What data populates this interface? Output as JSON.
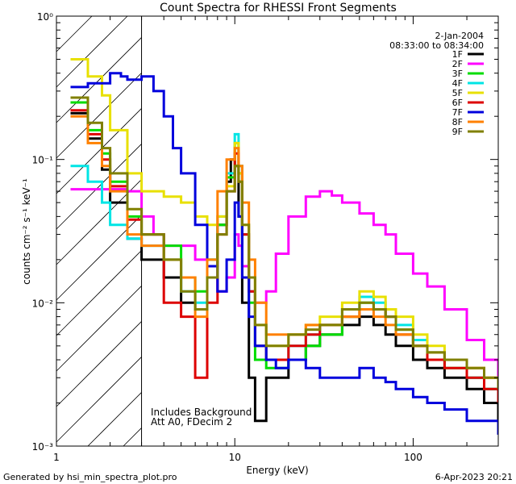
{
  "chart_data": {
    "type": "line",
    "title": "Count Spectra for RHESSI Front Segments",
    "xlabel": "Energy (keV)",
    "ylabel": "counts cm⁻² s⁻¹ keV⁻¹",
    "xscale": "log",
    "yscale": "log",
    "xlim": [
      1,
      300
    ],
    "ylim": [
      0.001,
      1
    ],
    "x_ticks": [
      {
        "value": 1,
        "label": "1"
      },
      {
        "value": 10,
        "label": "10"
      },
      {
        "value": 100,
        "label": "100"
      }
    ],
    "y_ticks": [
      {
        "value": 0.001,
        "label": "10⁻³"
      },
      {
        "value": 0.01,
        "label": "10⁻²"
      },
      {
        "value": 0.1,
        "label": "10⁻¹"
      },
      {
        "value": 1,
        "label": "10⁰"
      }
    ],
    "shaded_region": {
      "x_from": 1,
      "x_to": 3,
      "style": "diagonal hatch"
    },
    "date": "2-Jan-2004",
    "time_range": "08:33:00 to 08:34:00",
    "annotations": [
      "Includes Background",
      "Att A0, FDecim 2"
    ],
    "legend_position": "top-right",
    "series": [
      {
        "name": "1F",
        "color": "#000000",
        "x": [
          1.2,
          1.5,
          1.8,
          2,
          2.5,
          3,
          4,
          5,
          6,
          7,
          8,
          9,
          9.5,
          10,
          10.5,
          11,
          12,
          13,
          15,
          20,
          25,
          30,
          40,
          50,
          60,
          70,
          80,
          100,
          120,
          150,
          200,
          250,
          300
        ],
        "values": [
          0.21,
          0.14,
          0.085,
          0.05,
          0.028,
          0.02,
          0.015,
          0.01,
          0.009,
          0.018,
          0.035,
          0.07,
          0.1,
          0.09,
          0.04,
          0.01,
          0.003,
          0.0015,
          0.003,
          0.004,
          0.005,
          0.006,
          0.007,
          0.008,
          0.007,
          0.006,
          0.005,
          0.004,
          0.0035,
          0.003,
          0.0025,
          0.002,
          0.0015
        ]
      },
      {
        "name": "2F",
        "color": "#ff00ff",
        "x": [
          1.2,
          1.5,
          2,
          2.5,
          3,
          3.5,
          4,
          5,
          6,
          7,
          8,
          9,
          10,
          10.5,
          11,
          12,
          13,
          15,
          17,
          20,
          25,
          30,
          35,
          40,
          50,
          60,
          70,
          80,
          100,
          120,
          150,
          200,
          250,
          300
        ],
        "values": [
          0.062,
          0.062,
          0.062,
          0.06,
          0.04,
          0.03,
          0.025,
          0.025,
          0.02,
          0.015,
          0.012,
          0.015,
          0.03,
          0.025,
          0.018,
          0.012,
          0.01,
          0.012,
          0.022,
          0.04,
          0.055,
          0.06,
          0.056,
          0.05,
          0.042,
          0.035,
          0.03,
          0.022,
          0.016,
          0.013,
          0.009,
          0.0055,
          0.004,
          0.0028
        ]
      },
      {
        "name": "3F",
        "color": "#00dd00",
        "x": [
          1.2,
          1.5,
          1.8,
          2,
          2.5,
          3,
          4,
          5,
          6,
          7,
          8,
          9,
          10,
          10.5,
          11,
          12,
          13,
          15,
          20,
          25,
          30,
          40,
          50,
          60,
          70,
          80,
          100,
          120,
          150,
          200,
          250,
          300
        ],
        "values": [
          0.25,
          0.16,
          0.11,
          0.07,
          0.04,
          0.03,
          0.025,
          0.015,
          0.012,
          0.02,
          0.035,
          0.075,
          0.13,
          0.08,
          0.03,
          0.01,
          0.004,
          0.0035,
          0.004,
          0.005,
          0.006,
          0.008,
          0.01,
          0.009,
          0.008,
          0.0065,
          0.005,
          0.004,
          0.0035,
          0.003,
          0.0025,
          0.002
        ]
      },
      {
        "name": "4F",
        "color": "#00e5e5",
        "x": [
          1.2,
          1.5,
          1.8,
          2,
          2.5,
          3,
          4,
          5,
          6,
          7,
          8,
          9,
          10,
          10.5,
          11,
          12,
          13,
          15,
          20,
          25,
          30,
          40,
          50,
          60,
          70,
          80,
          100,
          120,
          150,
          200,
          250,
          300
        ],
        "values": [
          0.09,
          0.07,
          0.05,
          0.035,
          0.028,
          0.025,
          0.02,
          0.012,
          0.01,
          0.02,
          0.04,
          0.08,
          0.15,
          0.09,
          0.03,
          0.012,
          0.005,
          0.004,
          0.005,
          0.006,
          0.007,
          0.009,
          0.011,
          0.01,
          0.009,
          0.007,
          0.0055,
          0.0045,
          0.004,
          0.003,
          0.0025,
          0.002
        ]
      },
      {
        "name": "5F",
        "color": "#e8e000",
        "x": [
          1.2,
          1.5,
          1.8,
          2,
          2.5,
          3,
          4,
          5,
          6,
          7,
          8,
          9,
          10,
          10.5,
          11,
          12,
          13,
          15,
          20,
          25,
          30,
          40,
          50,
          60,
          70,
          80,
          100,
          120,
          150,
          200,
          250,
          300
        ],
        "values": [
          0.5,
          0.38,
          0.28,
          0.16,
          0.08,
          0.06,
          0.055,
          0.05,
          0.04,
          0.035,
          0.04,
          0.065,
          0.13,
          0.08,
          0.035,
          0.015,
          0.007,
          0.005,
          0.006,
          0.007,
          0.008,
          0.01,
          0.012,
          0.011,
          0.009,
          0.008,
          0.006,
          0.005,
          0.004,
          0.0035,
          0.003,
          0.0025
        ]
      },
      {
        "name": "6F",
        "color": "#dd0000",
        "x": [
          1.2,
          1.5,
          1.8,
          2,
          2.5,
          3,
          4,
          5,
          6,
          7,
          8,
          9,
          10,
          10.5,
          11,
          12,
          13,
          15,
          20,
          25,
          30,
          40,
          50,
          60,
          70,
          80,
          100,
          120,
          150,
          200,
          250,
          300
        ],
        "values": [
          0.22,
          0.15,
          0.1,
          0.065,
          0.038,
          0.03,
          0.01,
          0.008,
          0.003,
          0.01,
          0.03,
          0.06,
          0.11,
          0.07,
          0.03,
          0.012,
          0.005,
          0.004,
          0.005,
          0.006,
          0.007,
          0.008,
          0.009,
          0.009,
          0.008,
          0.006,
          0.005,
          0.004,
          0.0035,
          0.003,
          0.0025,
          0.002
        ]
      },
      {
        "name": "7F",
        "color": "#0000dd",
        "x": [
          1.2,
          1.5,
          2,
          2.3,
          2.5,
          3,
          3.5,
          4,
          4.5,
          5,
          6,
          7,
          8,
          9,
          10,
          10.5,
          11,
          12,
          13,
          15,
          17,
          20,
          25,
          30,
          40,
          50,
          60,
          70,
          80,
          100,
          120,
          150,
          200,
          250,
          300
        ],
        "values": [
          0.32,
          0.34,
          0.4,
          0.38,
          0.36,
          0.38,
          0.3,
          0.2,
          0.12,
          0.08,
          0.035,
          0.018,
          0.012,
          0.02,
          0.05,
          0.04,
          0.015,
          0.008,
          0.005,
          0.004,
          0.0035,
          0.004,
          0.0035,
          0.003,
          0.003,
          0.0035,
          0.003,
          0.0028,
          0.0025,
          0.0022,
          0.002,
          0.0018,
          0.0015,
          0.0015,
          0.0012
        ]
      },
      {
        "name": "8F",
        "color": "#ff8000",
        "x": [
          1.2,
          1.5,
          1.8,
          2,
          2.5,
          3,
          4,
          5,
          6,
          7,
          8,
          9,
          10,
          10.5,
          11,
          12,
          13,
          15,
          20,
          25,
          30,
          40,
          50,
          60,
          70,
          80,
          100,
          120,
          150,
          200,
          250,
          300
        ],
        "values": [
          0.2,
          0.13,
          0.09,
          0.06,
          0.03,
          0.025,
          0.02,
          0.015,
          0.008,
          0.02,
          0.06,
          0.1,
          0.12,
          0.09,
          0.05,
          0.02,
          0.01,
          0.006,
          0.006,
          0.007,
          0.007,
          0.008,
          0.009,
          0.008,
          0.007,
          0.006,
          0.005,
          0.0045,
          0.004,
          0.0035,
          0.003,
          0.0025
        ]
      },
      {
        "name": "9F",
        "color": "#808000",
        "x": [
          1.2,
          1.5,
          1.8,
          2,
          2.5,
          3,
          4,
          5,
          6,
          7,
          8,
          9,
          10,
          10.5,
          11,
          12,
          13,
          15,
          20,
          25,
          30,
          40,
          50,
          60,
          70,
          80,
          100,
          120,
          150,
          200,
          250,
          300
        ],
        "values": [
          0.27,
          0.18,
          0.12,
          0.08,
          0.045,
          0.03,
          0.02,
          0.012,
          0.009,
          0.015,
          0.03,
          0.06,
          0.09,
          0.07,
          0.035,
          0.015,
          0.007,
          0.005,
          0.006,
          0.0065,
          0.007,
          0.009,
          0.01,
          0.009,
          0.008,
          0.0065,
          0.005,
          0.0045,
          0.004,
          0.0035,
          0.003,
          0.0025
        ]
      }
    ]
  },
  "footer": {
    "generated_by": "Generated by hsi_min_spectra_plot.pro",
    "date_stamp": "6-Apr-2023 20:21"
  }
}
